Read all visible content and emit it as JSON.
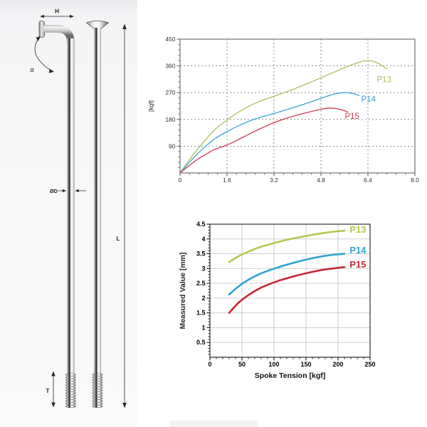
{
  "diagram": {
    "labels": {
      "head_width": "H",
      "bend_angle": "α",
      "diameter": "ØD",
      "length": "L",
      "thread": "T"
    }
  },
  "chart_data": [
    {
      "id": "force-chart",
      "type": "line",
      "title": "",
      "xlabel": "",
      "ylabel": "[kgf]",
      "xlim": [
        0,
        8.0
      ],
      "ylim": [
        0,
        450
      ],
      "grid": "dashed",
      "legend": "inline-labels",
      "xticks": [
        {
          "v": 0,
          "l": "0"
        },
        {
          "v": 1.6,
          "l": "1.6"
        },
        {
          "v": 3.2,
          "l": "3.2"
        },
        {
          "v": 4.8,
          "l": "4.8"
        },
        {
          "v": 6.4,
          "l": "6.4"
        },
        {
          "v": 8.0,
          "l": "8.0"
        }
      ],
      "yticks": [
        {
          "v": 90,
          "l": "90"
        },
        {
          "v": 180,
          "l": "180"
        },
        {
          "v": 270,
          "l": "270"
        },
        {
          "v": 360,
          "l": "360"
        },
        {
          "v": 450,
          "l": "450"
        }
      ],
      "grid_x": [
        1.6,
        3.2,
        4.8,
        6.4
      ],
      "grid_y": [
        90,
        180,
        270,
        360
      ],
      "minor_x": 0.32,
      "minor_y": 18,
      "series": [
        {
          "name": "P13",
          "color": "#a4c35c",
          "label_at": [
            6.95,
            315
          ],
          "points": [
            [
              0,
              0
            ],
            [
              0.3,
              42
            ],
            [
              0.6,
              80
            ],
            [
              0.9,
              115
            ],
            [
              1.2,
              147
            ],
            [
              1.6,
              178
            ],
            [
              2.0,
              205
            ],
            [
              2.4,
              227
            ],
            [
              2.8,
              244
            ],
            [
              3.2,
              258
            ],
            [
              3.6,
              272
            ],
            [
              4.0,
              287
            ],
            [
              4.4,
              303
            ],
            [
              4.8,
              320
            ],
            [
              5.2,
              337
            ],
            [
              5.6,
              354
            ],
            [
              6.0,
              369
            ],
            [
              6.3,
              377
            ],
            [
              6.55,
              376
            ],
            [
              6.8,
              366
            ],
            [
              7.05,
              350
            ]
          ]
        },
        {
          "name": "P14",
          "color": "#3aa6d4",
          "label_at": [
            6.42,
            249
          ],
          "points": [
            [
              0,
              0
            ],
            [
              0.3,
              34
            ],
            [
              0.6,
              65
            ],
            [
              0.9,
              92
            ],
            [
              1.2,
              116
            ],
            [
              1.6,
              139
            ],
            [
              2.0,
              159
            ],
            [
              2.4,
              176
            ],
            [
              2.8,
              189
            ],
            [
              3.2,
              200
            ],
            [
              3.6,
              212
            ],
            [
              4.0,
              224
            ],
            [
              4.4,
              237
            ],
            [
              4.8,
              251
            ],
            [
              5.1,
              261
            ],
            [
              5.4,
              268
            ],
            [
              5.65,
              270
            ],
            [
              5.9,
              267
            ],
            [
              6.1,
              260
            ]
          ]
        },
        {
          "name": "P15",
          "color": "#cc3c50",
          "label_at": [
            5.86,
            191
          ],
          "points": [
            [
              0,
              0
            ],
            [
              0.3,
              24
            ],
            [
              0.6,
              46
            ],
            [
              0.9,
              64
            ],
            [
              1.2,
              80
            ],
            [
              1.6,
              94
            ],
            [
              2.0,
              113
            ],
            [
              2.4,
              133
            ],
            [
              2.8,
              152
            ],
            [
              3.2,
              169
            ],
            [
              3.6,
              183
            ],
            [
              4.0,
              195
            ],
            [
              4.4,
              205
            ],
            [
              4.8,
              214
            ],
            [
              5.05,
              218
            ],
            [
              5.3,
              217
            ],
            [
              5.55,
              211
            ],
            [
              5.7,
              206
            ]
          ]
        }
      ]
    },
    {
      "id": "tension-chart",
      "type": "line",
      "title": "",
      "xlabel": "Spoke Tension [kgf]",
      "ylabel": "Measured Value [mm]",
      "xlim": [
        0,
        250
      ],
      "ylim": [
        0,
        4.5
      ],
      "grid": "solid",
      "legend": "inline-labels",
      "xticks": [
        {
          "v": 0,
          "l": "0"
        },
        {
          "v": 50,
          "l": "50"
        },
        {
          "v": 100,
          "l": "100"
        },
        {
          "v": 150,
          "l": "150"
        },
        {
          "v": 200,
          "l": "200"
        },
        {
          "v": 250,
          "l": "250"
        }
      ],
      "yticks": [
        {
          "v": 0.5,
          "l": "0.5"
        },
        {
          "v": 1,
          "l": "1"
        },
        {
          "v": 1.5,
          "l": "1.5"
        },
        {
          "v": 2,
          "l": "2"
        },
        {
          "v": 2.5,
          "l": "2.5"
        },
        {
          "v": 3,
          "l": "3"
        },
        {
          "v": 3.5,
          "l": "3.5"
        },
        {
          "v": 4,
          "l": "4"
        },
        {
          "v": 4.5,
          "l": "4.5"
        }
      ],
      "grid_x": [
        50,
        100,
        150,
        200
      ],
      "grid_y": [
        0.5,
        1,
        1.5,
        2,
        2.5,
        3,
        3.5,
        4
      ],
      "minor_x": 10,
      "minor_y": 0.1,
      "series": [
        {
          "name": "P13",
          "color": "#b0c84f",
          "label_at": [
            231,
            4.31
          ],
          "points": [
            [
              30,
              3.22
            ],
            [
              45,
              3.42
            ],
            [
              60,
              3.57
            ],
            [
              75,
              3.7
            ],
            [
              90,
              3.8
            ],
            [
              105,
              3.89
            ],
            [
              120,
              3.97
            ],
            [
              135,
              4.04
            ],
            [
              150,
              4.1
            ],
            [
              165,
              4.16
            ],
            [
              180,
              4.21
            ],
            [
              195,
              4.25
            ],
            [
              210,
              4.28
            ]
          ]
        },
        {
          "name": "P14",
          "color": "#2fa3d2",
          "label_at": [
            231,
            3.61
          ],
          "points": [
            [
              30,
              2.12
            ],
            [
              45,
              2.4
            ],
            [
              60,
              2.62
            ],
            [
              75,
              2.79
            ],
            [
              90,
              2.92
            ],
            [
              105,
              3.03
            ],
            [
              120,
              3.13
            ],
            [
              135,
              3.22
            ],
            [
              150,
              3.3
            ],
            [
              165,
              3.37
            ],
            [
              180,
              3.43
            ],
            [
              195,
              3.47
            ],
            [
              210,
              3.5
            ]
          ]
        },
        {
          "name": "P15",
          "color": "#c62838",
          "label_at": [
            231,
            3.13
          ],
          "points": [
            [
              30,
              1.5
            ],
            [
              45,
              1.85
            ],
            [
              60,
              2.1
            ],
            [
              75,
              2.3
            ],
            [
              90,
              2.45
            ],
            [
              105,
              2.57
            ],
            [
              120,
              2.67
            ],
            [
              135,
              2.76
            ],
            [
              150,
              2.84
            ],
            [
              165,
              2.91
            ],
            [
              180,
              2.97
            ],
            [
              195,
              3.01
            ],
            [
              210,
              3.05
            ]
          ]
        }
      ]
    }
  ]
}
